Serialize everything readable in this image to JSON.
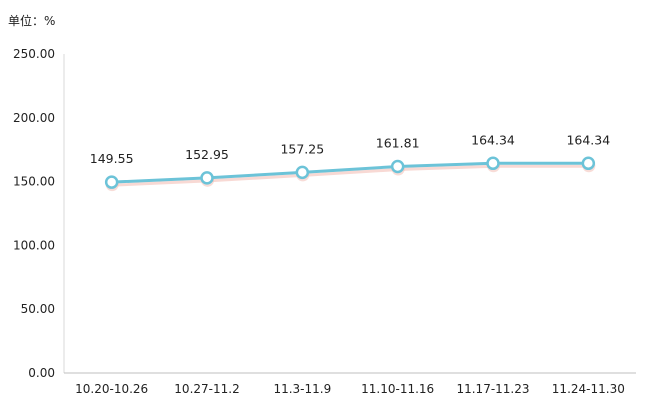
{
  "chart_data": {
    "type": "line",
    "unit_label": "单位：%",
    "categories": [
      "10.20-10.26",
      "10.27-11.2",
      "11.3-11.9",
      "11.10-11.16",
      "11.17-11.23",
      "11.24-11.30"
    ],
    "values": [
      149.55,
      152.95,
      157.25,
      161.81,
      164.34,
      164.34
    ],
    "value_labels": [
      "149.55",
      "152.95",
      "157.25",
      "161.81",
      "164.34",
      "164.34"
    ],
    "y_ticks": [
      "0.00",
      "50.00",
      "100.00",
      "150.00",
      "200.00",
      "250.00"
    ],
    "ylim": [
      0,
      250
    ],
    "grid": false,
    "line_color": "#6cc3d8",
    "shadow_color": "#f2b9b0",
    "marker_fill": "#ffffff",
    "marker_stroke": "#6cc3d8"
  }
}
